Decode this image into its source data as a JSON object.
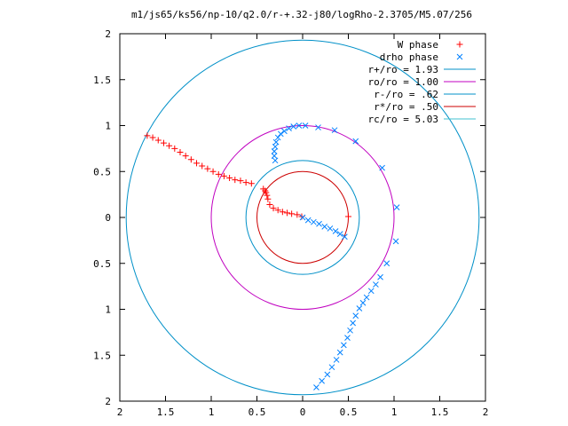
{
  "chart_data": {
    "type": "scatter",
    "title": "m1/js65/ks56/np-10/q2.0/r-+.32-j80/logRho-2.3705/M5.07/256",
    "xlabel": "",
    "ylabel": "",
    "xlim": [
      2,
      -2
    ],
    "ylim": [
      -2,
      2
    ],
    "x_tick_labels": [
      "2",
      "1.5",
      "1",
      "0.5",
      "0",
      "0.5",
      "1",
      "1.5",
      "2"
    ],
    "y_tick_labels": [
      "2",
      "1.5",
      "1",
      "0.5",
      "0",
      "0.5",
      "1",
      "1.5",
      "2"
    ],
    "grid": false,
    "legend_position": "top-right",
    "legend": [
      {
        "label": "W phase",
        "marker": "+",
        "color": "#ff0000"
      },
      {
        "label": "drho phase",
        "marker": "x",
        "color": "#0080ff"
      },
      {
        "label": "r+/ro = 1.93",
        "line": true,
        "color": "#0090c8"
      },
      {
        "label": "ro/ro = 1.00",
        "line": true,
        "color": "#c000c0"
      },
      {
        "label": "r-/ro = .62",
        "line": true,
        "color": "#0090c8"
      },
      {
        "label": "r*/ro = .50",
        "line": true,
        "color": "#cc0000"
      },
      {
        "label": "rc/ro = 5.03",
        "line": true,
        "color": "#40c0d0"
      }
    ],
    "circles": [
      {
        "name": "r+/ro = 1.93",
        "radius": 1.93,
        "color": "#0090c8"
      },
      {
        "name": "ro/ro = 1.00",
        "radius": 1.0,
        "color": "#c000c0"
      },
      {
        "name": "r-/ro = .62",
        "radius": 0.62,
        "color": "#0090c8"
      },
      {
        "name": "r*/ro = .50",
        "radius": 0.5,
        "color": "#cc0000"
      }
    ],
    "series": [
      {
        "name": "W phase",
        "marker": "+",
        "color": "#ff0000",
        "points": [
          [
            1.7,
            0.89
          ],
          [
            1.64,
            0.87
          ],
          [
            1.58,
            0.84
          ],
          [
            1.52,
            0.81
          ],
          [
            1.46,
            0.78
          ],
          [
            1.4,
            0.75
          ],
          [
            1.34,
            0.71
          ],
          [
            1.28,
            0.67
          ],
          [
            1.22,
            0.63
          ],
          [
            1.16,
            0.59
          ],
          [
            1.1,
            0.56
          ],
          [
            1.04,
            0.53
          ],
          [
            0.98,
            0.5
          ],
          [
            0.92,
            0.47
          ],
          [
            0.86,
            0.45
          ],
          [
            0.8,
            0.43
          ],
          [
            0.74,
            0.41
          ],
          [
            0.68,
            0.4
          ],
          [
            0.62,
            0.38
          ],
          [
            0.56,
            0.37
          ],
          [
            0.43,
            0.31
          ],
          [
            0.41,
            0.29
          ],
          [
            0.4,
            0.27
          ],
          [
            0.39,
            0.24
          ],
          [
            0.38,
            0.2
          ],
          [
            0.36,
            0.14
          ],
          [
            0.32,
            0.1
          ],
          [
            0.27,
            0.08
          ],
          [
            0.22,
            0.06
          ],
          [
            0.17,
            0.05
          ],
          [
            0.12,
            0.04
          ],
          [
            0.06,
            0.03
          ],
          [
            0.01,
            0.01
          ],
          [
            -0.5,
            0.01
          ]
        ]
      },
      {
        "name": "drho phase",
        "marker": "x",
        "color": "#0080ff",
        "points": [
          [
            0.3,
            0.62
          ],
          [
            0.31,
            0.67
          ],
          [
            0.31,
            0.72
          ],
          [
            0.3,
            0.77
          ],
          [
            0.29,
            0.82
          ],
          [
            0.27,
            0.87
          ],
          [
            0.24,
            0.91
          ],
          [
            0.2,
            0.94
          ],
          [
            0.15,
            0.97
          ],
          [
            0.1,
            0.99
          ],
          [
            0.04,
            1.0
          ],
          [
            -0.03,
            1.0
          ],
          [
            -0.17,
            0.98
          ],
          [
            -0.35,
            0.95
          ],
          [
            -0.58,
            0.83
          ],
          [
            -0.87,
            0.54
          ],
          [
            -1.03,
            0.11
          ],
          [
            -1.02,
            -0.26
          ],
          [
            -0.92,
            -0.5
          ],
          [
            -0.85,
            -0.65
          ],
          [
            -0.8,
            -0.73
          ],
          [
            -0.75,
            -0.8
          ],
          [
            -0.7,
            -0.87
          ],
          [
            -0.66,
            -0.93
          ],
          [
            -0.62,
            -0.99
          ],
          [
            -0.58,
            -1.07
          ],
          [
            -0.55,
            -1.15
          ],
          [
            -0.52,
            -1.23
          ],
          [
            -0.49,
            -1.31
          ],
          [
            -0.45,
            -1.39
          ],
          [
            -0.41,
            -1.47
          ],
          [
            -0.37,
            -1.55
          ],
          [
            -0.32,
            -1.63
          ],
          [
            -0.27,
            -1.71
          ],
          [
            -0.21,
            -1.78
          ],
          [
            -0.15,
            -1.85
          ],
          [
            0.0,
            0.0
          ],
          [
            -0.06,
            -0.03
          ],
          [
            -0.12,
            -0.05
          ],
          [
            -0.18,
            -0.07
          ],
          [
            -0.24,
            -0.1
          ],
          [
            -0.3,
            -0.12
          ],
          [
            -0.36,
            -0.15
          ],
          [
            -0.41,
            -0.18
          ],
          [
            -0.46,
            -0.21
          ]
        ]
      }
    ]
  }
}
